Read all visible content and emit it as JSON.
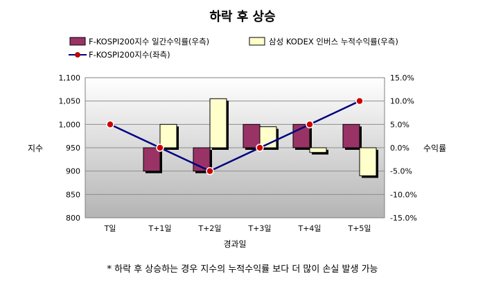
{
  "chart_data": {
    "type": "bar-line-combo",
    "title": "하락 후 상승",
    "categories": [
      "T일",
      "T+1일",
      "T+2일",
      "T+3일",
      "T+4일",
      "T+5일"
    ],
    "xlabel": "경과일",
    "ylabel_left": "지수",
    "ylabel_right": "수익률",
    "y_left": {
      "range": [
        800,
        1100
      ],
      "ticks": [
        "800",
        "850",
        "900",
        "950",
        "1,000",
        "1,050",
        "1,100"
      ],
      "tick_values": [
        800,
        850,
        900,
        950,
        1000,
        1050,
        1100
      ]
    },
    "y_right": {
      "range": [
        -15,
        15
      ],
      "ticks": [
        "-15.0%",
        "-10.0%",
        "-5.0%",
        "0.0%",
        "5.0%",
        "10.0%",
        "15.0%"
      ],
      "tick_values": [
        -15,
        -10,
        -5,
        0,
        5,
        10,
        15
      ]
    },
    "series": [
      {
        "name": "F-KOSPI200지수 일간수익률(우측)",
        "type": "bar",
        "axis": "right",
        "color": "#993366",
        "values": [
          0,
          -5,
          -5,
          5,
          5,
          5
        ]
      },
      {
        "name": "삼성 KODEX 인버스 누적수익률(우측)",
        "type": "bar",
        "axis": "right",
        "color": "#FFFFCC",
        "values": [
          0,
          5,
          10.5,
          4.5,
          -1,
          -6
        ]
      },
      {
        "name": "F-KOSPI200지수(좌측)",
        "type": "line",
        "axis": "left",
        "color": "#000080",
        "marker_color": "#CC0000",
        "values": [
          1000,
          950,
          900,
          950,
          1000,
          1050
        ]
      }
    ],
    "grid": true,
    "legend": "top"
  },
  "footnote": "* 하락 후 상승하는 경우 지수의 누적수익률 보다 더 많이 손실 발생 가능"
}
